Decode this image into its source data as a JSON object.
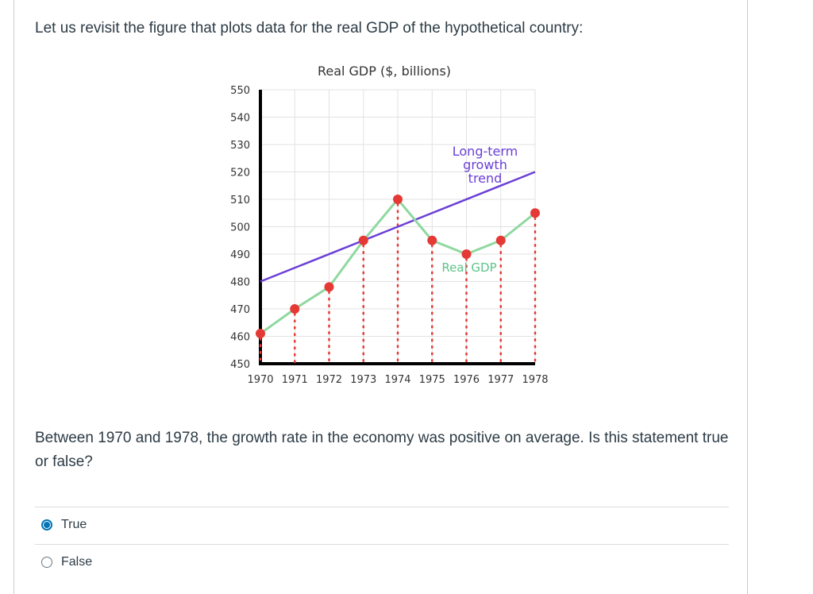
{
  "intro_text": "Let us revisit the figure that plots data for the real GDP of the hypothetical country:",
  "question_text": "Between 1970 and 1978, the growth rate in the economy was positive on average. Is this statement true or false?",
  "answers": [
    {
      "label": "True",
      "selected": true
    },
    {
      "label": "False",
      "selected": false
    }
  ],
  "chart_data": {
    "type": "line",
    "title": "Real GDP ($, billions)",
    "x": [
      1970,
      1971,
      1972,
      1973,
      1974,
      1975,
      1976,
      1977,
      1978
    ],
    "categories": [
      "1970",
      "1971",
      "1972",
      "1973",
      "1974",
      "1975",
      "1976",
      "1977",
      "1978"
    ],
    "yticks": [
      550,
      540,
      530,
      520,
      510,
      500,
      490,
      480,
      470,
      460,
      450
    ],
    "ylim": [
      450,
      550
    ],
    "series": [
      {
        "name": "Real GDP",
        "values": [
          461,
          470,
          478,
          495,
          510,
          495,
          490,
          495,
          505
        ],
        "color": "#8fd8a0",
        "marker_color": "#e53935"
      },
      {
        "name": "Long-term growth trend",
        "start": [
          1970,
          480
        ],
        "end": [
          1978,
          520
        ],
        "color": "#6a3fd6"
      }
    ],
    "annotations": [
      {
        "lines": [
          "Long-term",
          "growth",
          "trend"
        ],
        "color": "#6a3fd6"
      },
      {
        "text": "Real GDP",
        "color": "#5cc48a"
      }
    ],
    "grid": true,
    "dotted_drop_lines": true
  }
}
